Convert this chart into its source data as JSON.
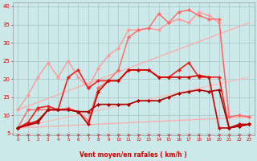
{
  "bg_color": "#cce8e8",
  "grid_color": "#aacccc",
  "xlabel": "Vent moyen/en rafales ( km/h )",
  "xlabel_color": "#cc0000",
  "tick_color": "#cc0000",
  "arrow_color": "#cc3333",
  "xmin": -0.5,
  "xmax": 23.5,
  "ymin": 4.5,
  "ymax": 41,
  "yticks": [
    5,
    10,
    15,
    20,
    25,
    30,
    35,
    40
  ],
  "xticks": [
    0,
    1,
    2,
    3,
    4,
    5,
    6,
    7,
    8,
    9,
    10,
    11,
    12,
    13,
    14,
    15,
    16,
    17,
    18,
    19,
    20,
    21,
    22,
    23
  ],
  "series": [
    {
      "x": [
        0,
        23
      ],
      "y": [
        6.5,
        9.5
      ],
      "color": "#ffaaaa",
      "linewidth": 0.9,
      "marker": null,
      "linestyle": "-"
    },
    {
      "x": [
        0,
        23
      ],
      "y": [
        6.5,
        20.5
      ],
      "color": "#ffbbbb",
      "linewidth": 0.9,
      "marker": null,
      "linestyle": "-"
    },
    {
      "x": [
        0,
        23
      ],
      "y": [
        11.5,
        35.5
      ],
      "color": "#ffaaaa",
      "linewidth": 0.9,
      "marker": null,
      "linestyle": "-"
    },
    {
      "x": [
        0,
        1,
        2,
        3,
        4,
        5,
        6,
        7,
        8,
        9,
        10,
        11,
        12,
        13,
        14,
        15,
        16,
        17,
        18,
        19,
        20,
        21,
        22,
        23
      ],
      "y": [
        11.5,
        15.5,
        20.5,
        24.5,
        20.5,
        25.0,
        20.5,
        17.5,
        23.0,
        26.5,
        28.5,
        33.5,
        33.5,
        34.0,
        33.5,
        35.5,
        36.5,
        35.5,
        38.5,
        37.5,
        35.5,
        9.5,
        10.0,
        9.5
      ],
      "color": "#ff9999",
      "linewidth": 1.0,
      "marker": "D",
      "markersize": 2.2,
      "linestyle": "-"
    },
    {
      "x": [
        0,
        1,
        2,
        3,
        4,
        5,
        6,
        7,
        8,
        9,
        10,
        11,
        12,
        13,
        14,
        15,
        16,
        17,
        18,
        19,
        20,
        21,
        22,
        23
      ],
      "y": [
        6.5,
        11.5,
        11.5,
        11.5,
        11.5,
        12.0,
        11.0,
        8.5,
        17.5,
        19.5,
        22.5,
        31.5,
        33.5,
        34.0,
        38.0,
        35.5,
        38.5,
        39.0,
        37.5,
        36.5,
        36.5,
        9.5,
        10.0,
        9.5
      ],
      "color": "#ff6666",
      "linewidth": 1.0,
      "marker": "D",
      "markersize": 2.2,
      "linestyle": "-"
    },
    {
      "x": [
        0,
        1,
        2,
        3,
        4,
        5,
        6,
        7,
        8,
        9,
        10,
        11,
        12,
        13,
        14,
        15,
        16,
        17,
        18,
        19,
        20,
        21,
        22,
        23
      ],
      "y": [
        6.5,
        8.0,
        12.0,
        12.5,
        11.5,
        20.5,
        22.5,
        17.5,
        19.5,
        19.5,
        19.5,
        22.5,
        22.5,
        22.5,
        20.5,
        20.5,
        22.5,
        24.5,
        20.5,
        20.5,
        20.5,
        6.5,
        7.0,
        7.5
      ],
      "color": "#ee2222",
      "linewidth": 1.2,
      "marker": "D",
      "markersize": 2.2,
      "linestyle": "-"
    },
    {
      "x": [
        0,
        1,
        2,
        3,
        4,
        5,
        6,
        7,
        8,
        9,
        10,
        11,
        12,
        13,
        14,
        15,
        16,
        17,
        18,
        19,
        20,
        21,
        22,
        23
      ],
      "y": [
        6.5,
        7.5,
        8.5,
        11.5,
        11.5,
        11.5,
        11.0,
        7.5,
        16.5,
        19.5,
        19.5,
        22.5,
        22.5,
        22.5,
        20.5,
        20.5,
        20.5,
        20.5,
        21.0,
        20.5,
        6.5,
        6.5,
        7.5,
        7.5
      ],
      "color": "#cc0000",
      "linewidth": 1.2,
      "marker": "D",
      "markersize": 2.2,
      "linestyle": "-"
    },
    {
      "x": [
        0,
        2,
        3,
        4,
        5,
        6,
        7,
        8,
        9,
        10,
        11,
        12,
        13,
        14,
        15,
        16,
        17,
        18,
        19,
        20,
        21,
        22,
        23
      ],
      "y": [
        6.5,
        8.0,
        11.5,
        11.5,
        11.5,
        11.0,
        11.0,
        13.0,
        13.0,
        13.0,
        13.0,
        14.0,
        14.0,
        14.0,
        15.0,
        16.0,
        16.5,
        17.0,
        16.5,
        17.0,
        6.5,
        7.0,
        7.5
      ],
      "color": "#aa0000",
      "linewidth": 1.2,
      "marker": "D",
      "markersize": 2.2,
      "linestyle": "-"
    }
  ]
}
